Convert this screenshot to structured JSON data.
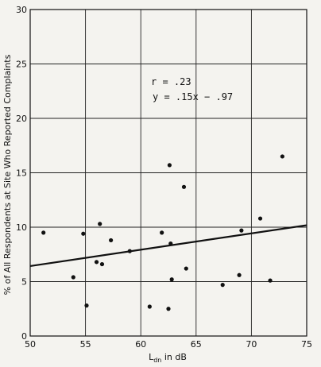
{
  "chart_data": {
    "type": "scatter",
    "title": "",
    "xlabel": "L",
    "xlabel_sub": "dn",
    "xlabel_suffix": " in dB",
    "ylabel": "% of All Respondents at Site Who Reported Complaints",
    "xlim": [
      50,
      75
    ],
    "ylim": [
      0,
      30
    ],
    "x_ticks": [
      50,
      55,
      60,
      65,
      70,
      75
    ],
    "y_ticks": [
      0,
      5,
      10,
      15,
      20,
      25,
      30
    ],
    "x_tick_labels": [
      "50",
      "55",
      "60",
      "65",
      "70",
      "75"
    ],
    "y_tick_labels": [
      "0",
      "5",
      "10",
      "15",
      "20",
      "25",
      "30"
    ],
    "grid": true,
    "annotations": [
      "r = .23",
      "y = .15x − .97"
    ],
    "regression_line": {
      "slope": 0.15,
      "intercept": -0.97
    },
    "series": [
      {
        "x": [
          51.2,
          53.9,
          55.1,
          54.8,
          56.0,
          56.3,
          56.5,
          57.3,
          59.0,
          60.8,
          61.9,
          62.8,
          62.7,
          62.6,
          62.5,
          63.9,
          64.1,
          67.4,
          69.1,
          68.9,
          70.8,
          71.7,
          72.8
        ],
        "y": [
          9.5,
          5.4,
          2.8,
          9.4,
          6.8,
          10.3,
          6.6,
          8.8,
          7.8,
          2.7,
          9.5,
          5.2,
          8.5,
          15.7,
          2.5,
          13.7,
          6.2,
          4.7,
          9.7,
          5.6,
          10.8,
          5.1,
          16.5
        ]
      }
    ]
  }
}
